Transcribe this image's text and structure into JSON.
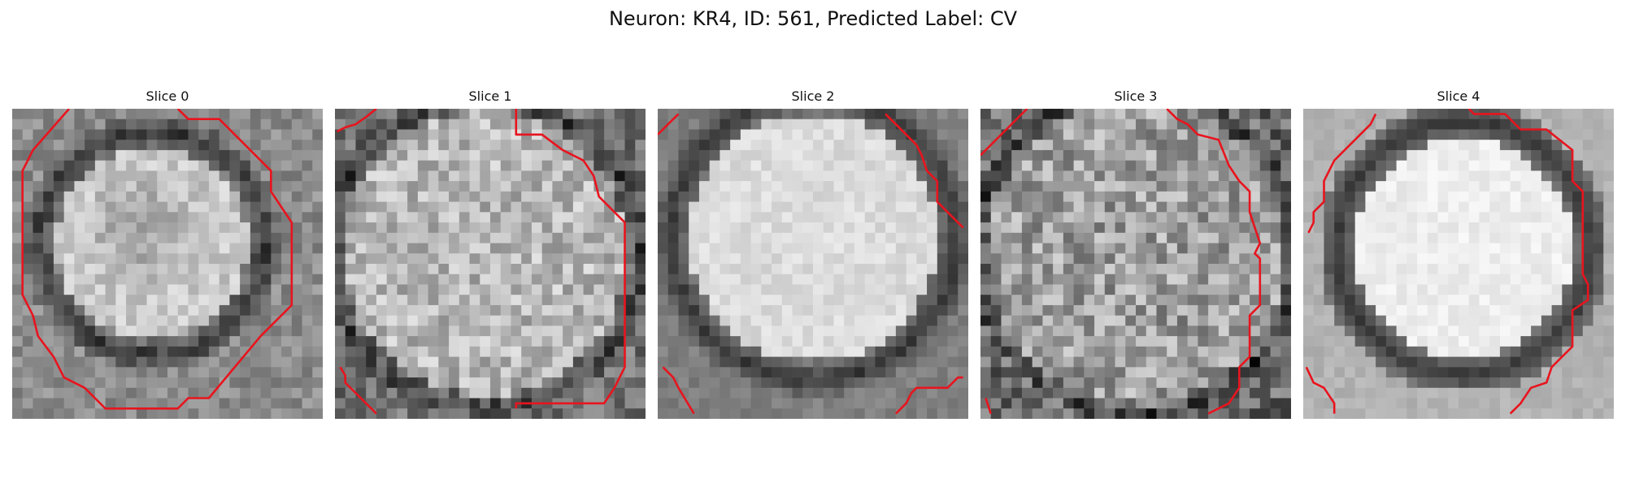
{
  "figure": {
    "title": "Neuron: KR4, ID: 561, Predicted Label: CV"
  },
  "panels": [
    {
      "title": "Slice 0"
    },
    {
      "title": "Slice 1"
    },
    {
      "title": "Slice 2"
    },
    {
      "title": "Slice 3"
    },
    {
      "title": "Slice 4"
    }
  ],
  "colors": {
    "contour": "#e8141e",
    "background": "#ffffff"
  }
}
